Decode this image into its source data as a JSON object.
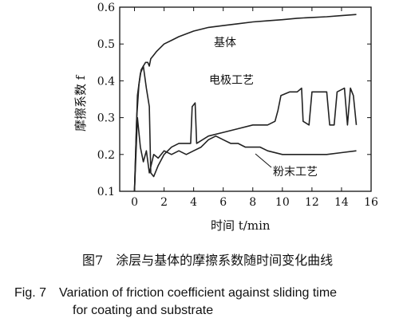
{
  "chart_data": {
    "type": "line",
    "xlabel": "时间 t/min",
    "ylabel": "摩擦系数 f",
    "xlim": [
      -1,
      16
    ],
    "ylim": [
      0.1,
      0.6
    ],
    "xticks": [
      0,
      2,
      4,
      6,
      8,
      10,
      12,
      14,
      16
    ],
    "yticks": [
      0.1,
      0.2,
      0.3,
      0.4,
      0.5,
      0.6
    ],
    "x_tick_labels": [
      "0",
      "2",
      "4",
      "6",
      "8",
      "10",
      "12",
      "14",
      "16"
    ],
    "y_tick_labels": [
      "0.1",
      "0.2",
      "0.3",
      "0.4",
      "0.5",
      "0.6"
    ],
    "grid": false,
    "series": [
      {
        "name": "基体",
        "points": [
          [
            0,
            0.1
          ],
          [
            0.15,
            0.3
          ],
          [
            0.3,
            0.39
          ],
          [
            0.45,
            0.43
          ],
          [
            0.6,
            0.44
          ],
          [
            0.75,
            0.45
          ],
          [
            0.9,
            0.45
          ],
          [
            1.0,
            0.44
          ],
          [
            1.1,
            0.46
          ],
          [
            1.3,
            0.47
          ],
          [
            1.5,
            0.48
          ],
          [
            2,
            0.5
          ],
          [
            2.5,
            0.51
          ],
          [
            3,
            0.52
          ],
          [
            4,
            0.535
          ],
          [
            5,
            0.545
          ],
          [
            6,
            0.55
          ],
          [
            7,
            0.555
          ],
          [
            8,
            0.56
          ],
          [
            9,
            0.563
          ],
          [
            10,
            0.566
          ],
          [
            11,
            0.57
          ],
          [
            12,
            0.572
          ],
          [
            13,
            0.574
          ],
          [
            14,
            0.577
          ],
          [
            15,
            0.58
          ]
        ]
      },
      {
        "name": "电极工艺",
        "points": [
          [
            0,
            0.1
          ],
          [
            0.2,
            0.36
          ],
          [
            0.4,
            0.42
          ],
          [
            0.6,
            0.44
          ],
          [
            0.8,
            0.38
          ],
          [
            1.0,
            0.33
          ],
          [
            1.1,
            0.15
          ],
          [
            1.3,
            0.14
          ],
          [
            1.6,
            0.17
          ],
          [
            2,
            0.2
          ],
          [
            2.5,
            0.22
          ],
          [
            3,
            0.23
          ],
          [
            3.5,
            0.23
          ],
          [
            3.8,
            0.23
          ],
          [
            3.9,
            0.33
          ],
          [
            4.1,
            0.34
          ],
          [
            4.2,
            0.23
          ],
          [
            5,
            0.25
          ],
          [
            6,
            0.26
          ],
          [
            7,
            0.27
          ],
          [
            8,
            0.28
          ],
          [
            9,
            0.28
          ],
          [
            9.5,
            0.29
          ],
          [
            9.7,
            0.32
          ],
          [
            9.9,
            0.36
          ],
          [
            10.5,
            0.37
          ],
          [
            11,
            0.37
          ],
          [
            11.3,
            0.38
          ],
          [
            11.4,
            0.29
          ],
          [
            11.8,
            0.28
          ],
          [
            12.0,
            0.37
          ],
          [
            12.5,
            0.37
          ],
          [
            13.0,
            0.37
          ],
          [
            13.2,
            0.28
          ],
          [
            13.5,
            0.28
          ],
          [
            13.7,
            0.37
          ],
          [
            14.2,
            0.38
          ],
          [
            14.4,
            0.28
          ],
          [
            14.6,
            0.38
          ],
          [
            14.8,
            0.36
          ],
          [
            15,
            0.28
          ]
        ]
      },
      {
        "name": "粉末工艺",
        "points": [
          [
            0,
            0.1
          ],
          [
            0.2,
            0.3
          ],
          [
            0.4,
            0.22
          ],
          [
            0.6,
            0.18
          ],
          [
            0.8,
            0.21
          ],
          [
            1.0,
            0.15
          ],
          [
            1.3,
            0.2
          ],
          [
            1.6,
            0.19
          ],
          [
            2,
            0.21
          ],
          [
            2.5,
            0.2
          ],
          [
            3,
            0.21
          ],
          [
            3.5,
            0.2
          ],
          [
            4,
            0.21
          ],
          [
            4.5,
            0.22
          ],
          [
            5,
            0.24
          ],
          [
            5.5,
            0.25
          ],
          [
            6,
            0.24
          ],
          [
            6.5,
            0.23
          ],
          [
            7,
            0.23
          ],
          [
            7.5,
            0.22
          ],
          [
            8,
            0.22
          ],
          [
            8.5,
            0.22
          ],
          [
            9,
            0.21
          ],
          [
            10,
            0.2
          ],
          [
            11,
            0.2
          ],
          [
            12,
            0.2
          ],
          [
            13,
            0.2
          ],
          [
            14,
            0.205
          ],
          [
            15,
            0.21
          ]
        ]
      }
    ],
    "annotations": [
      "基体",
      "电极工艺",
      "粉末工艺"
    ]
  },
  "caption": {
    "cn": "图7　涂层与基体的摩擦系数随时间变化曲线",
    "en_line1": "Fig. 7　Variation of friction coefficient against sliding time",
    "en_line2": "for coating and substrate"
  }
}
